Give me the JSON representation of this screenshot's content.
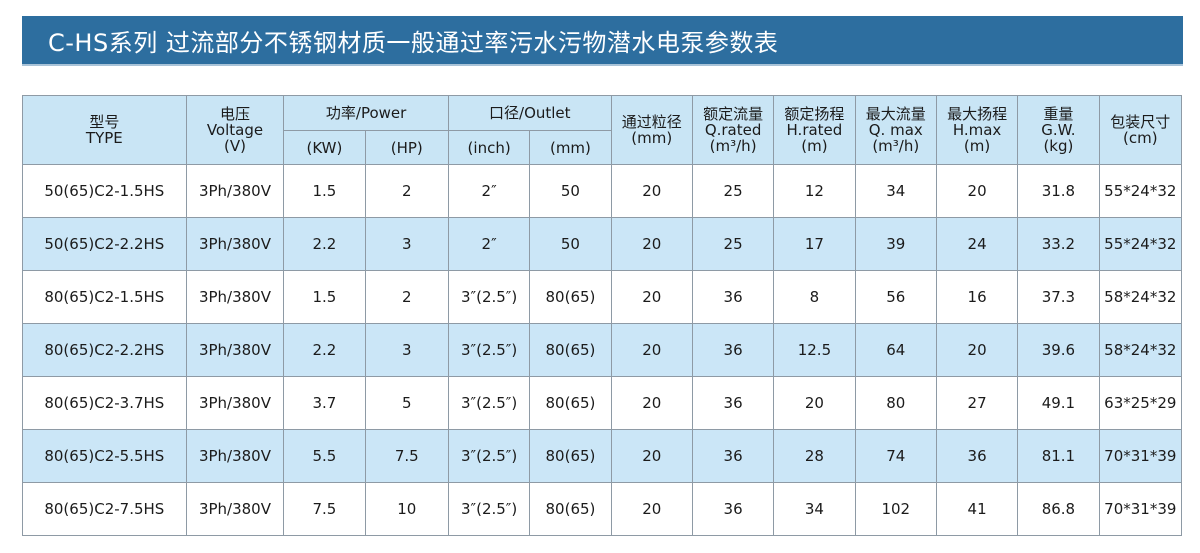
{
  "title": "C-HS系列 过流部分不锈钢材质一般通过率污水污物潜水电泵参数表",
  "headers": {
    "type": [
      "型号",
      "TYPE"
    ],
    "voltage": [
      "电压",
      "Voltage",
      "(V)"
    ],
    "power": "功率/Power",
    "power_kw": "(KW)",
    "power_hp": "(HP)",
    "outlet": "口径/Outlet",
    "outlet_inch": "(inch)",
    "outlet_mm": "(mm)",
    "passage": [
      "通过粒径",
      "(mm)"
    ],
    "q_rated": [
      "额定流量",
      "Q.rated",
      "(m³/h)"
    ],
    "h_rated": [
      "额定扬程",
      "H.rated",
      "(m)"
    ],
    "q_max": [
      "最大流量",
      "Q. max",
      "(m³/h)"
    ],
    "h_max": [
      "最大扬程",
      "H.max",
      "(m)"
    ],
    "weight": [
      "重量",
      "G.W.",
      "(kg)"
    ],
    "package": [
      "包装尺寸",
      "(cm)"
    ]
  },
  "rows": [
    [
      "50(65)C2-1.5HS",
      "3Ph/380V",
      "1.5",
      "2",
      "2″",
      "50",
      "20",
      "25",
      "12",
      "34",
      "20",
      "31.8",
      "55*24*32"
    ],
    [
      "50(65)C2-2.2HS",
      "3Ph/380V",
      "2.2",
      "3",
      "2″",
      "50",
      "20",
      "25",
      "17",
      "39",
      "24",
      "33.2",
      "55*24*32"
    ],
    [
      "80(65)C2-1.5HS",
      "3Ph/380V",
      "1.5",
      "2",
      "3″(2.5″)",
      "80(65)",
      "20",
      "36",
      "8",
      "56",
      "16",
      "37.3",
      "58*24*32"
    ],
    [
      "80(65)C2-2.2HS",
      "3Ph/380V",
      "2.2",
      "3",
      "3″(2.5″)",
      "80(65)",
      "20",
      "36",
      "12.5",
      "64",
      "20",
      "39.6",
      "58*24*32"
    ],
    [
      "80(65)C2-3.7HS",
      "3Ph/380V",
      "3.7",
      "5",
      "3″(2.5″)",
      "80(65)",
      "20",
      "36",
      "20",
      "80",
      "27",
      "49.1",
      "63*25*29"
    ],
    [
      "80(65)C2-5.5HS",
      "3Ph/380V",
      "5.5",
      "7.5",
      "3″(2.5″)",
      "80(65)",
      "20",
      "36",
      "28",
      "74",
      "36",
      "81.1",
      "70*31*39"
    ],
    [
      "80(65)C2-7.5HS",
      "3Ph/380V",
      "7.5",
      "10",
      "3″(2.5″)",
      "80(65)",
      "20",
      "36",
      "34",
      "102",
      "41",
      "86.8",
      "70*31*39"
    ]
  ],
  "colors": {
    "title_bar": "#2d6e9f",
    "header_fill": "#c9e5f5",
    "row_shade": "#cbe6f7",
    "border": "#8e9aa5"
  }
}
